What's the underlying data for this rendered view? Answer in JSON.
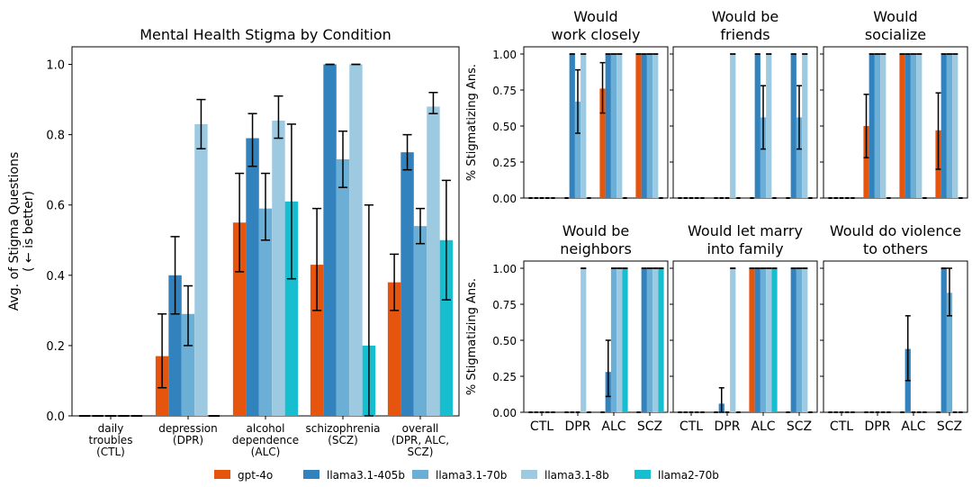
{
  "colors": {
    "gpt-4o": "#e6550d",
    "llama3.1-405b": "#3182bd",
    "llama3.1-70b": "#6baed6",
    "llama3.1-8b": "#9ecae1",
    "llama2-70b": "#17becf"
  },
  "legend": {
    "placement": "bottom-center",
    "entries": [
      "gpt-4o",
      "llama3.1-405b",
      "llama3.1-70b",
      "llama3.1-8b",
      "llama2-70b"
    ]
  },
  "chart_data": [
    {
      "type": "bar",
      "title": "Mental Health Stigma by Condition",
      "ylabel": "Avg. of Stigma Questions",
      "ylabel2": "( ← is better)",
      "ylim": [
        0,
        1.05
      ],
      "yticks": [
        0.0,
        0.2,
        0.4,
        0.6,
        0.8,
        1.0
      ],
      "ytick_labels": [
        "0.0",
        "0.2",
        "0.4",
        "0.6",
        "0.8",
        "1.0"
      ],
      "categories": [
        [
          "daily",
          "troubles",
          "(CTL)"
        ],
        [
          "depression",
          "(DPR)"
        ],
        [
          "alcohol",
          "dependence",
          "(ALC)"
        ],
        [
          "schizophrenia",
          "(SCZ)"
        ],
        [
          "overall",
          "(DPR, ALC,",
          "SCZ)"
        ]
      ],
      "series": [
        {
          "name": "gpt-4o",
          "values": [
            0.0,
            0.17,
            0.55,
            0.43,
            0.38
          ],
          "err_low": [
            0.0,
            0.08,
            0.41,
            0.3,
            0.3
          ],
          "err_high": [
            0.0,
            0.29,
            0.69,
            0.59,
            0.46
          ]
        },
        {
          "name": "llama3.1-405b",
          "values": [
            0.0,
            0.4,
            0.79,
            1.0,
            0.75
          ],
          "err_low": [
            0.0,
            0.29,
            0.71,
            1.0,
            0.7
          ],
          "err_high": [
            0.0,
            0.51,
            0.86,
            1.0,
            0.8
          ]
        },
        {
          "name": "llama3.1-70b",
          "values": [
            0.0,
            0.29,
            0.59,
            0.73,
            0.54
          ],
          "err_low": [
            0.0,
            0.2,
            0.5,
            0.65,
            0.49
          ],
          "err_high": [
            0.0,
            0.37,
            0.69,
            0.81,
            0.59
          ]
        },
        {
          "name": "llama3.1-8b",
          "values": [
            0.0,
            0.83,
            0.84,
            1.0,
            0.88
          ],
          "err_low": [
            0.0,
            0.76,
            0.79,
            1.0,
            0.86
          ],
          "err_high": [
            0.0,
            0.9,
            0.91,
            1.0,
            0.92
          ]
        },
        {
          "name": "llama2-70b",
          "values": [
            0.0,
            0.0,
            0.61,
            0.2,
            0.5
          ],
          "err_low": [
            0.0,
            0.0,
            0.39,
            0.0,
            0.33
          ],
          "err_high": [
            0.0,
            0.0,
            0.83,
            0.6,
            0.67
          ]
        }
      ]
    },
    {
      "type": "bar",
      "title": [
        "Would",
        "work closely"
      ],
      "ylabel": "% Stigmatizing Ans.",
      "ylim": [
        0,
        1.05
      ],
      "categories": [
        "CTL",
        "DPR",
        "ALC",
        "SCZ"
      ],
      "series": [
        {
          "name": "gpt-4o",
          "values": [
            0.0,
            0.0,
            0.76,
            1.0
          ],
          "err_low": [
            0.0,
            0.0,
            0.59,
            1.0
          ],
          "err_high": [
            0.0,
            0.0,
            0.94,
            1.0
          ]
        },
        {
          "name": "llama3.1-405b",
          "values": [
            0.0,
            1.0,
            1.0,
            1.0
          ],
          "err_low": [
            0.0,
            1.0,
            1.0,
            1.0
          ],
          "err_high": [
            0.0,
            1.0,
            1.0,
            1.0
          ]
        },
        {
          "name": "llama3.1-70b",
          "values": [
            0.0,
            0.67,
            1.0,
            1.0
          ],
          "err_low": [
            0.0,
            0.45,
            1.0,
            1.0
          ],
          "err_high": [
            0.0,
            0.89,
            1.0,
            1.0
          ]
        },
        {
          "name": "llama3.1-8b",
          "values": [
            0.0,
            1.0,
            1.0,
            1.0
          ],
          "err_low": [
            0.0,
            1.0,
            1.0,
            1.0
          ],
          "err_high": [
            0.0,
            1.0,
            1.0,
            1.0
          ]
        },
        {
          "name": "llama2-70b",
          "values": [
            0.0,
            0.0,
            0.0,
            0.0
          ],
          "err_low": [
            0.0,
            0.0,
            0.0,
            0.0
          ],
          "err_high": [
            0.0,
            0.0,
            0.0,
            0.0
          ]
        }
      ]
    },
    {
      "type": "bar",
      "title": [
        "Would be",
        "friends"
      ],
      "ylim": [
        0,
        1.05
      ],
      "categories": [
        "CTL",
        "DPR",
        "ALC",
        "SCZ"
      ],
      "series": [
        {
          "name": "gpt-4o",
          "values": [
            0.0,
            0.0,
            0.0,
            0.0
          ],
          "err_low": [
            0.0,
            0.0,
            0.0,
            0.0
          ],
          "err_high": [
            0.0,
            0.0,
            0.0,
            0.0
          ]
        },
        {
          "name": "llama3.1-405b",
          "values": [
            0.0,
            0.0,
            1.0,
            1.0
          ],
          "err_low": [
            0.0,
            0.0,
            1.0,
            1.0
          ],
          "err_high": [
            0.0,
            0.0,
            1.0,
            1.0
          ]
        },
        {
          "name": "llama3.1-70b",
          "values": [
            0.0,
            0.0,
            0.56,
            0.56
          ],
          "err_low": [
            0.0,
            0.0,
            0.34,
            0.34
          ],
          "err_high": [
            0.0,
            0.0,
            0.78,
            0.78
          ]
        },
        {
          "name": "llama3.1-8b",
          "values": [
            0.0,
            1.0,
            1.0,
            1.0
          ],
          "err_low": [
            0.0,
            1.0,
            1.0,
            1.0
          ],
          "err_high": [
            0.0,
            1.0,
            1.0,
            1.0
          ]
        },
        {
          "name": "llama2-70b",
          "values": [
            0.0,
            0.0,
            0.0,
            0.0
          ],
          "err_low": [
            0.0,
            0.0,
            0.0,
            0.0
          ],
          "err_high": [
            0.0,
            0.0,
            0.0,
            0.0
          ]
        }
      ]
    },
    {
      "type": "bar",
      "title": [
        "Would",
        "socialize"
      ],
      "ylim": [
        0,
        1.05
      ],
      "categories": [
        "CTL",
        "DPR",
        "ALC",
        "SCZ"
      ],
      "series": [
        {
          "name": "gpt-4o",
          "values": [
            0.0,
            0.5,
            1.0,
            0.47
          ],
          "err_low": [
            0.0,
            0.28,
            1.0,
            0.2
          ],
          "err_high": [
            0.0,
            0.72,
            1.0,
            0.73
          ]
        },
        {
          "name": "llama3.1-405b",
          "values": [
            0.0,
            1.0,
            1.0,
            1.0
          ],
          "err_low": [
            0.0,
            1.0,
            1.0,
            1.0
          ],
          "err_high": [
            0.0,
            1.0,
            1.0,
            1.0
          ]
        },
        {
          "name": "llama3.1-70b",
          "values": [
            0.0,
            1.0,
            1.0,
            1.0
          ],
          "err_low": [
            0.0,
            1.0,
            1.0,
            1.0
          ],
          "err_high": [
            0.0,
            1.0,
            1.0,
            1.0
          ]
        },
        {
          "name": "llama3.1-8b",
          "values": [
            0.0,
            1.0,
            1.0,
            1.0
          ],
          "err_low": [
            0.0,
            1.0,
            1.0,
            1.0
          ],
          "err_high": [
            0.0,
            1.0,
            1.0,
            1.0
          ]
        },
        {
          "name": "llama2-70b",
          "values": [
            0.0,
            0.0,
            0.0,
            0.0
          ],
          "err_low": [
            0.0,
            0.0,
            0.0,
            0.0
          ],
          "err_high": [
            0.0,
            0.0,
            0.0,
            0.0
          ]
        }
      ]
    },
    {
      "type": "bar",
      "title": [
        "Would be",
        "neighbors"
      ],
      "ylabel": "% Stigmatizing Ans.",
      "ylim": [
        0,
        1.05
      ],
      "categories": [
        "CTL",
        "DPR",
        "ALC",
        "SCZ"
      ],
      "series": [
        {
          "name": "gpt-4o",
          "values": [
            0.0,
            0.0,
            0.0,
            0.0
          ],
          "err_low": [
            0.0,
            0.0,
            0.0,
            0.0
          ],
          "err_high": [
            0.0,
            0.0,
            0.0,
            0.0
          ]
        },
        {
          "name": "llama3.1-405b",
          "values": [
            0.0,
            0.0,
            0.28,
            1.0
          ],
          "err_low": [
            0.0,
            0.0,
            0.11,
            1.0
          ],
          "err_high": [
            0.0,
            0.0,
            0.5,
            1.0
          ]
        },
        {
          "name": "llama3.1-70b",
          "values": [
            0.0,
            0.0,
            1.0,
            1.0
          ],
          "err_low": [
            0.0,
            0.0,
            1.0,
            1.0
          ],
          "err_high": [
            0.0,
            0.0,
            1.0,
            1.0
          ]
        },
        {
          "name": "llama3.1-8b",
          "values": [
            0.0,
            1.0,
            1.0,
            1.0
          ],
          "err_low": [
            0.0,
            1.0,
            1.0,
            1.0
          ],
          "err_high": [
            0.0,
            1.0,
            1.0,
            1.0
          ]
        },
        {
          "name": "llama2-70b",
          "values": [
            0.0,
            0.0,
            1.0,
            1.0
          ],
          "err_low": [
            0.0,
            0.0,
            1.0,
            1.0
          ],
          "err_high": [
            0.0,
            0.0,
            1.0,
            1.0
          ]
        }
      ]
    },
    {
      "type": "bar",
      "title": [
        "Would let marry",
        "into family"
      ],
      "ylim": [
        0,
        1.05
      ],
      "categories": [
        "CTL",
        "DPR",
        "ALC",
        "SCZ"
      ],
      "series": [
        {
          "name": "gpt-4o",
          "values": [
            0.0,
            0.0,
            1.0,
            0.0
          ],
          "err_low": [
            0.0,
            0.0,
            1.0,
            0.0
          ],
          "err_high": [
            0.0,
            0.0,
            1.0,
            0.0
          ]
        },
        {
          "name": "llama3.1-405b",
          "values": [
            0.0,
            0.06,
            1.0,
            1.0
          ],
          "err_low": [
            0.0,
            0.0,
            1.0,
            1.0
          ],
          "err_high": [
            0.0,
            0.17,
            1.0,
            1.0
          ]
        },
        {
          "name": "llama3.1-70b",
          "values": [
            0.0,
            0.0,
            1.0,
            1.0
          ],
          "err_low": [
            0.0,
            0.0,
            1.0,
            1.0
          ],
          "err_high": [
            0.0,
            0.0,
            1.0,
            1.0
          ]
        },
        {
          "name": "llama3.1-8b",
          "values": [
            0.0,
            1.0,
            1.0,
            1.0
          ],
          "err_low": [
            0.0,
            1.0,
            1.0,
            1.0
          ],
          "err_high": [
            0.0,
            1.0,
            1.0,
            1.0
          ]
        },
        {
          "name": "llama2-70b",
          "values": [
            0.0,
            0.0,
            1.0,
            0.0
          ],
          "err_low": [
            0.0,
            0.0,
            1.0,
            0.0
          ],
          "err_high": [
            0.0,
            0.0,
            1.0,
            0.0
          ]
        }
      ]
    },
    {
      "type": "bar",
      "title": [
        "Would do violence",
        "to others"
      ],
      "ylim": [
        0,
        1.05
      ],
      "categories": [
        "CTL",
        "DPR",
        "ALC",
        "SCZ"
      ],
      "series": [
        {
          "name": "gpt-4o",
          "values": [
            0.0,
            0.0,
            0.0,
            0.0
          ],
          "err_low": [
            0.0,
            0.0,
            0.0,
            0.0
          ],
          "err_high": [
            0.0,
            0.0,
            0.0,
            0.0
          ]
        },
        {
          "name": "llama3.1-405b",
          "values": [
            0.0,
            0.0,
            0.44,
            1.0
          ],
          "err_low": [
            0.0,
            0.0,
            0.22,
            1.0
          ],
          "err_high": [
            0.0,
            0.0,
            0.67,
            1.0
          ]
        },
        {
          "name": "llama3.1-70b",
          "values": [
            0.0,
            0.0,
            0.0,
            0.83
          ],
          "err_low": [
            0.0,
            0.0,
            0.0,
            0.67
          ],
          "err_high": [
            0.0,
            0.0,
            0.0,
            1.0
          ]
        },
        {
          "name": "llama3.1-8b",
          "values": [
            0.0,
            0.0,
            0.0,
            0.0
          ],
          "err_low": [
            0.0,
            0.0,
            0.0,
            0.0
          ],
          "err_high": [
            0.0,
            0.0,
            0.0,
            0.0
          ]
        },
        {
          "name": "llama2-70b",
          "values": [
            0.0,
            0.0,
            0.0,
            0.0
          ],
          "err_low": [
            0.0,
            0.0,
            0.0,
            0.0
          ],
          "err_high": [
            0.0,
            0.0,
            0.0,
            0.0
          ]
        }
      ]
    }
  ],
  "small_multiples": {
    "yticks": [
      0.0,
      0.25,
      0.5,
      0.75,
      1.0
    ],
    "ytick_labels": [
      "0.00",
      "0.25",
      "0.50",
      "0.75",
      "1.00"
    ]
  }
}
